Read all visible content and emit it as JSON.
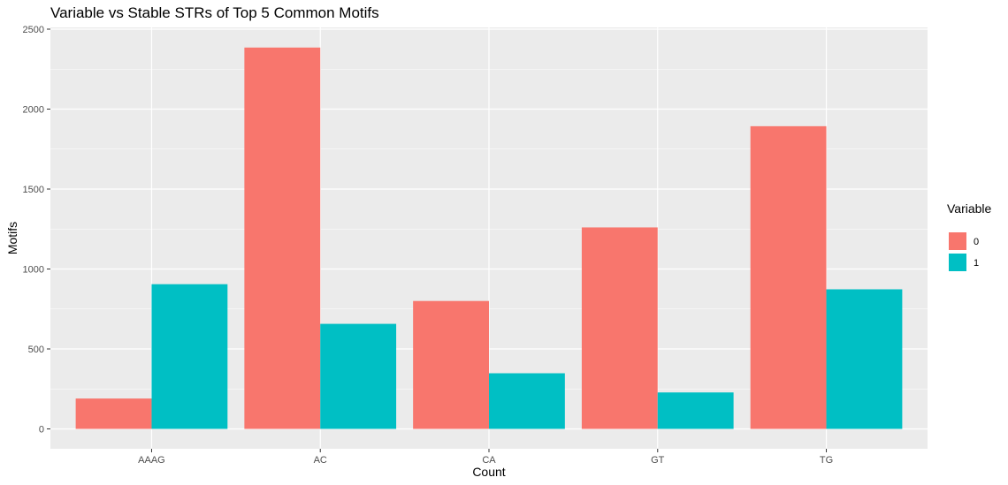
{
  "chart_data": {
    "type": "bar",
    "title": "Variable vs Stable STRs of Top 5 Common Motifs",
    "xlabel": "Count",
    "ylabel": "Motifs",
    "categories": [
      "AAAG",
      "AC",
      "CA",
      "GT",
      "TG"
    ],
    "series": [
      {
        "name": "0",
        "color": "#F8766D",
        "values": [
          190,
          2385,
          800,
          1260,
          1893
        ]
      },
      {
        "name": "1",
        "color": "#00BFC4",
        "values": [
          905,
          657,
          348,
          228,
          873
        ]
      }
    ],
    "ylim": [
      0,
      2500
    ],
    "yticks": [
      0,
      500,
      1000,
      1500,
      2000,
      2500
    ],
    "grid": true,
    "legend": {
      "title": "Variable",
      "position": "right"
    },
    "panel_background": "#EBEBEB",
    "grid_color": "#FFFFFF"
  }
}
